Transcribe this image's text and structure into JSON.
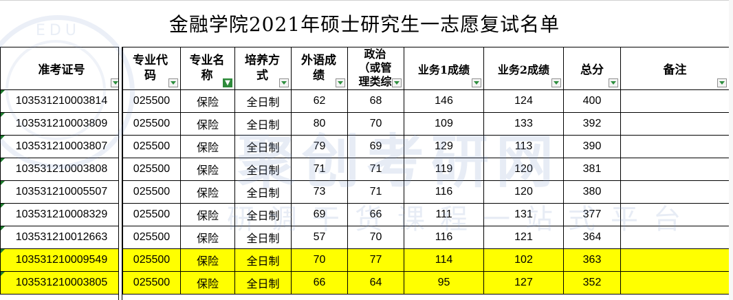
{
  "title": "金融学院2021年硕士研究生一志愿复试名单",
  "columns": [
    {
      "label": "准考证号"
    },
    {
      "label": "专业代码"
    },
    {
      "label": "专业名称"
    },
    {
      "label": "培养方式"
    },
    {
      "label": "外语成绩"
    },
    {
      "label": "政治（或管理类综"
    },
    {
      "label": "业务1成绩"
    },
    {
      "label": "业务2成绩"
    },
    {
      "label": "总分"
    },
    {
      "label": "备注"
    }
  ],
  "filter_active_column": "专业名称",
  "highlight_color": "#ffff00",
  "rows": [
    {
      "id": "103531210003814",
      "code": "025500",
      "major": "保险",
      "mode": "全日制",
      "foreign": "62",
      "politics": "68",
      "b1": "146",
      "b2": "124",
      "total": "400",
      "note": "",
      "highlight": false
    },
    {
      "id": "103531210003809",
      "code": "025500",
      "major": "保险",
      "mode": "全日制",
      "foreign": "80",
      "politics": "70",
      "b1": "109",
      "b2": "133",
      "total": "392",
      "note": "",
      "highlight": false
    },
    {
      "id": "103531210003807",
      "code": "025500",
      "major": "保险",
      "mode": "全日制",
      "foreign": "79",
      "politics": "69",
      "b1": "129",
      "b2": "113",
      "total": "390",
      "note": "",
      "highlight": false
    },
    {
      "id": "103531210003808",
      "code": "025500",
      "major": "保险",
      "mode": "全日制",
      "foreign": "71",
      "politics": "71",
      "b1": "119",
      "b2": "120",
      "total": "381",
      "note": "",
      "highlight": false
    },
    {
      "id": "103531210005507",
      "code": "025500",
      "major": "保险",
      "mode": "全日制",
      "foreign": "73",
      "politics": "71",
      "b1": "116",
      "b2": "120",
      "total": "380",
      "note": "",
      "highlight": false
    },
    {
      "id": "103531210008329",
      "code": "025500",
      "major": "保险",
      "mode": "全日制",
      "foreign": "69",
      "politics": "66",
      "b1": "111",
      "b2": "131",
      "total": "377",
      "note": "",
      "highlight": false
    },
    {
      "id": "103531210012663",
      "code": "025500",
      "major": "保险",
      "mode": "全日制",
      "foreign": "57",
      "politics": "70",
      "b1": "116",
      "b2": "121",
      "total": "364",
      "note": "",
      "highlight": false
    },
    {
      "id": "103531210009549",
      "code": "025500",
      "major": "保险",
      "mode": "全日制",
      "foreign": "70",
      "politics": "77",
      "b1": "114",
      "b2": "102",
      "total": "363",
      "note": "",
      "highlight": true
    },
    {
      "id": "103531210003805",
      "code": "025500",
      "major": "保险",
      "mode": "全日制",
      "foreign": "66",
      "politics": "64",
      "b1": "95",
      "b2": "127",
      "total": "352",
      "note": "",
      "highlight": true
    }
  ],
  "watermark": {
    "big": "聚创考研网",
    "small": "研调干货课程一站式平台",
    "edu": "EDU"
  }
}
